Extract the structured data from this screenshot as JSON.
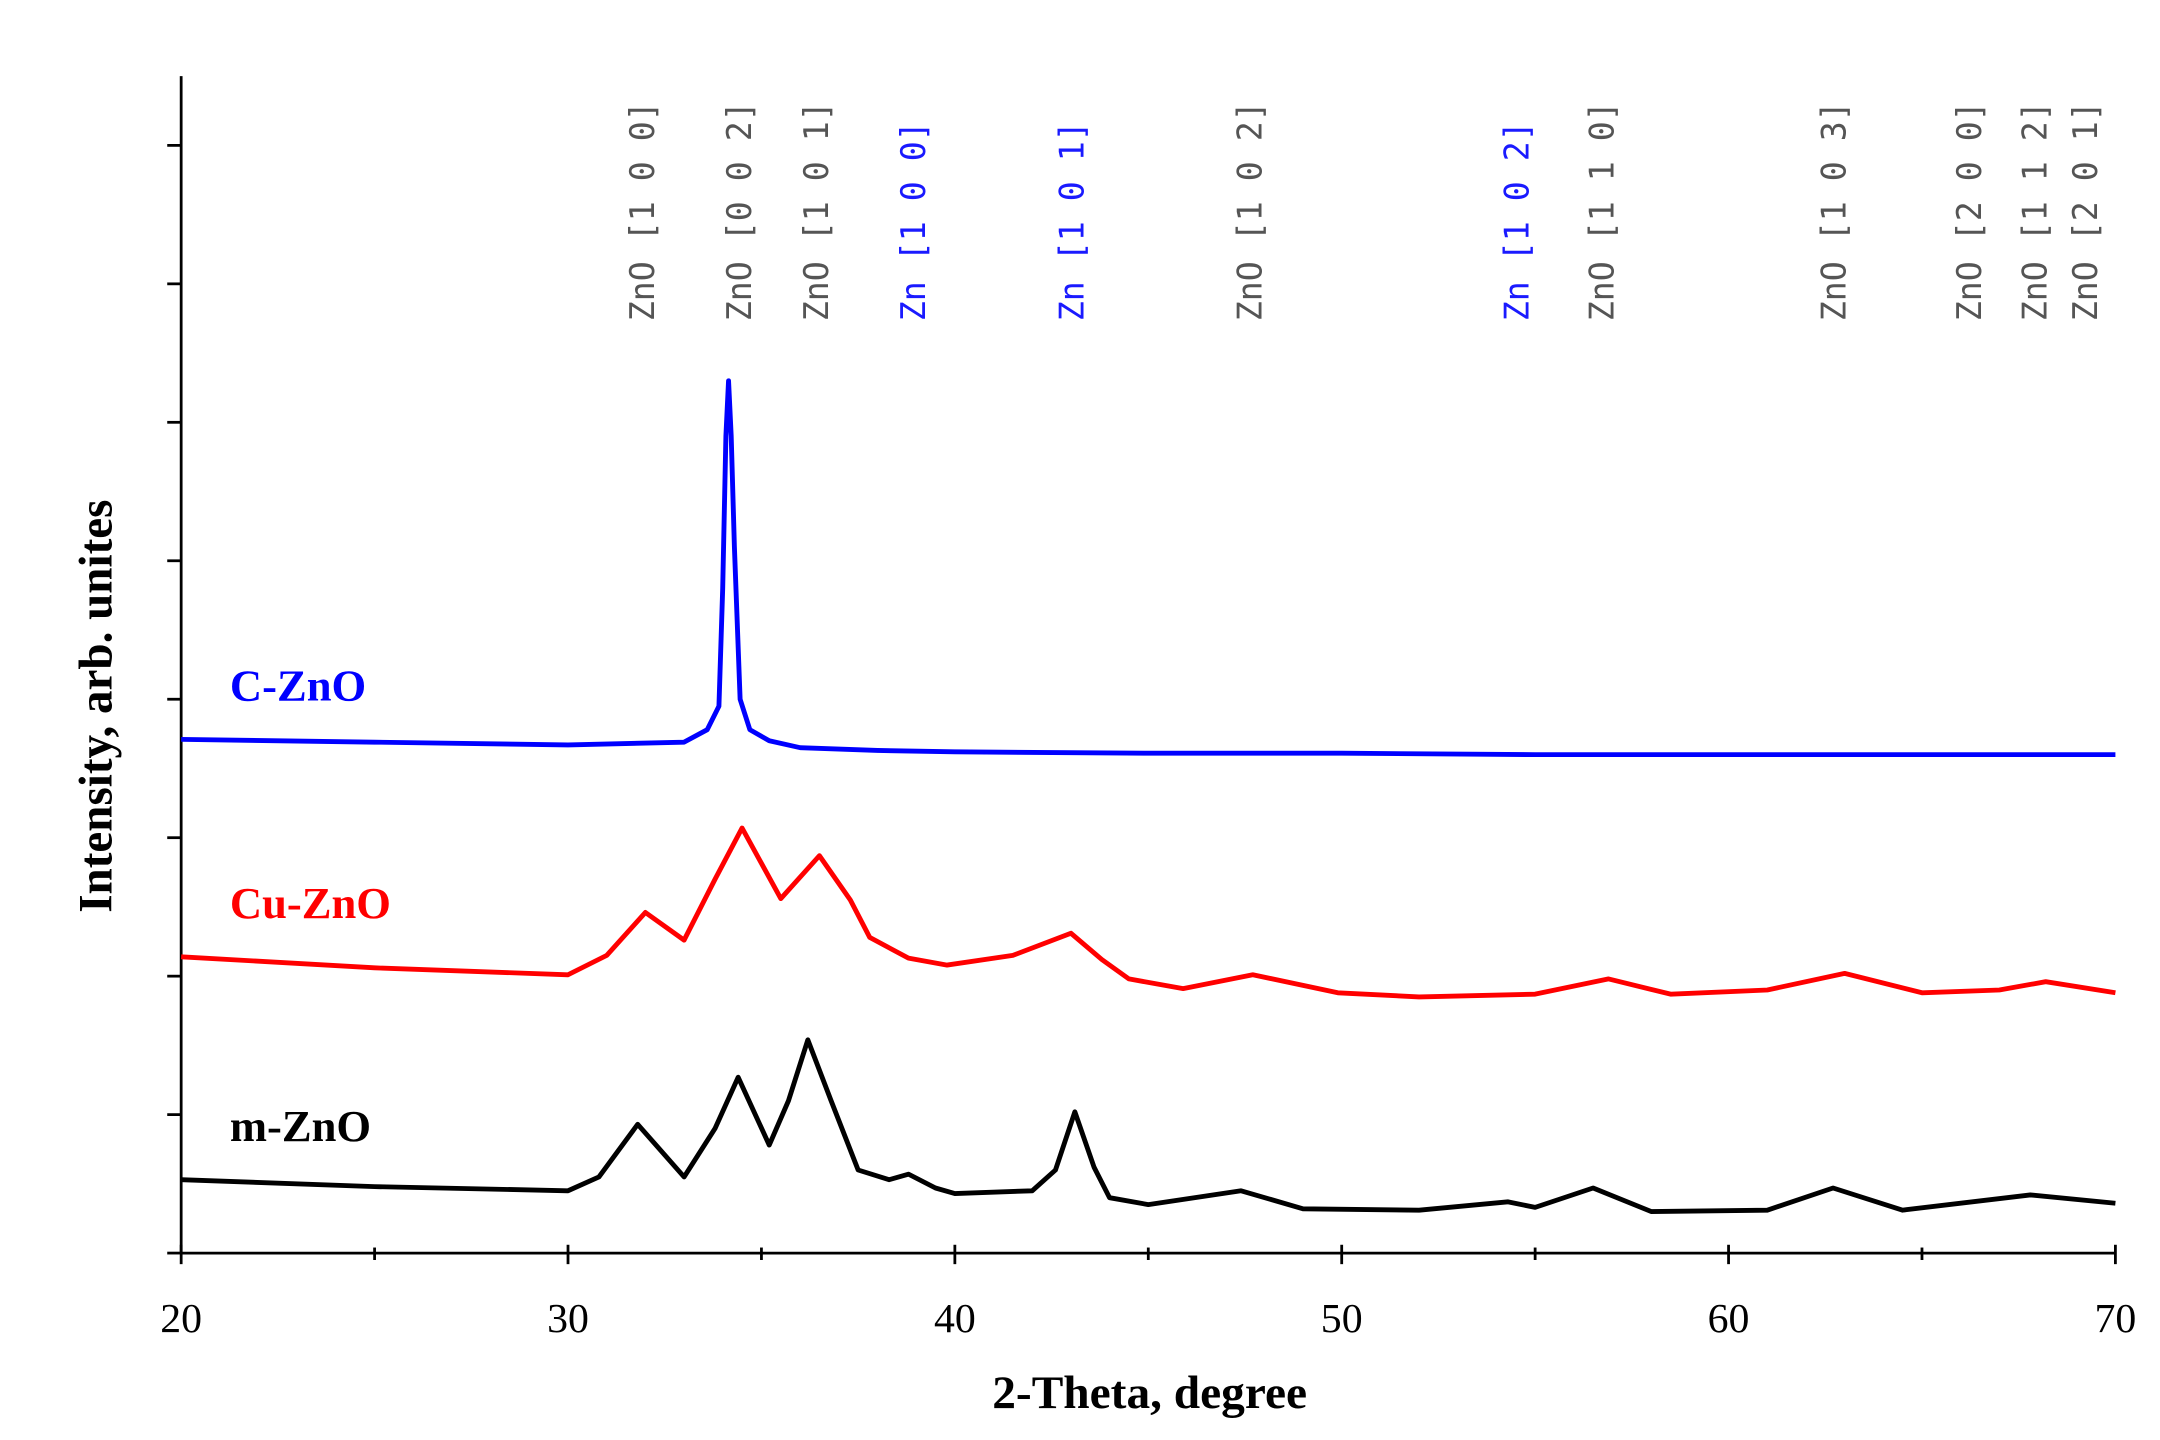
{
  "chart_data": {
    "type": "line",
    "x_label": "2-Theta, degree",
    "y_label": "Intensity, arb. unites",
    "xlim": [
      20,
      70
    ],
    "xticks": [
      20,
      30,
      40,
      50,
      60,
      70
    ],
    "xminorticks": [
      25,
      35,
      45,
      55,
      65
    ],
    "ylim": [
      0,
      8.5
    ],
    "yticks": [
      0,
      1,
      2,
      3,
      4,
      5,
      6,
      7,
      8
    ],
    "series": [
      {
        "name": "C-ZnO",
        "color": "#0000ff",
        "x": [
          20,
          25,
          30,
          33.0,
          33.6,
          33.9,
          34.0,
          34.08,
          34.15,
          34.22,
          34.3,
          34.45,
          34.7,
          35.2,
          36,
          38,
          40,
          45,
          50,
          55,
          60,
          65,
          70
        ],
        "values": [
          3.71,
          3.69,
          3.67,
          3.69,
          3.78,
          3.95,
          4.8,
          5.9,
          6.3,
          5.9,
          5.1,
          4.0,
          3.78,
          3.7,
          3.65,
          3.63,
          3.62,
          3.61,
          3.61,
          3.6,
          3.6,
          3.6,
          3.6
        ]
      },
      {
        "name": "Cu-ZnO",
        "color": "#ff0000",
        "x": [
          20,
          25,
          30,
          31.0,
          32.0,
          33.0,
          33.8,
          34.5,
          35.5,
          36.5,
          37.3,
          37.8,
          38.8,
          39.8,
          41.5,
          43.0,
          43.8,
          44.5,
          45.9,
          47.7,
          49.9,
          52,
          55,
          56.9,
          58.5,
          61,
          63.0,
          65,
          67,
          68.2,
          70
        ],
        "values": [
          2.14,
          2.06,
          2.01,
          2.15,
          2.46,
          2.26,
          2.7,
          3.07,
          2.56,
          2.87,
          2.55,
          2.28,
          2.13,
          2.08,
          2.15,
          2.31,
          2.12,
          1.98,
          1.91,
          2.01,
          1.88,
          1.85,
          1.87,
          1.98,
          1.87,
          1.9,
          2.02,
          1.88,
          1.9,
          1.96,
          1.88
        ]
      },
      {
        "name": "m-ZnO",
        "color": "#000000",
        "x": [
          20,
          25,
          30,
          30.8,
          31.8,
          33.0,
          33.8,
          34.4,
          35.2,
          35.7,
          36.2,
          36.8,
          37.5,
          38.3,
          38.8,
          39.5,
          40,
          42,
          42.6,
          43.1,
          43.6,
          44,
          45,
          47.4,
          49,
          52,
          54.3,
          55,
          56.5,
          58,
          61,
          62.7,
          64.5,
          67.8,
          70
        ],
        "values": [
          0.53,
          0.48,
          0.45,
          0.55,
          0.93,
          0.55,
          0.9,
          1.27,
          0.78,
          1.1,
          1.54,
          1.1,
          0.6,
          0.53,
          0.57,
          0.47,
          0.43,
          0.45,
          0.6,
          1.02,
          0.62,
          0.4,
          0.35,
          0.45,
          0.32,
          0.31,
          0.37,
          0.33,
          0.47,
          0.3,
          0.31,
          0.47,
          0.31,
          0.42,
          0.36
        ]
      }
    ],
    "annotations": [
      {
        "text": "ZnO [1 0 0]",
        "x": 31.9,
        "color": "#555555"
      },
      {
        "text": "ZnO [0 0 2]",
        "x": 34.4,
        "color": "#555555"
      },
      {
        "text": "ZnO [1 0 1]",
        "x": 36.4,
        "color": "#555555"
      },
      {
        "text": "Zn [1 0 0]",
        "x": 38.9,
        "color": "#1a1aff"
      },
      {
        "text": "Zn [1 0 1]",
        "x": 43.0,
        "color": "#1a1aff"
      },
      {
        "text": "ZnO [1 0 2]",
        "x": 47.6,
        "color": "#555555"
      },
      {
        "text": "Zn [1 0 2]",
        "x": 54.5,
        "color": "#1a1aff"
      },
      {
        "text": "ZnO [1 1 0]",
        "x": 56.7,
        "color": "#555555"
      },
      {
        "text": "ZnO [1 0 3]",
        "x": 62.7,
        "color": "#555555"
      },
      {
        "text": "ZnO [2 0 0]",
        "x": 66.2,
        "color": "#555555"
      },
      {
        "text": "ZnO [1 1 2]",
        "x": 67.9,
        "color": "#555555"
      },
      {
        "text": "ZnO [2 0 1]",
        "x": 69.2,
        "color": "#555555"
      }
    ]
  }
}
